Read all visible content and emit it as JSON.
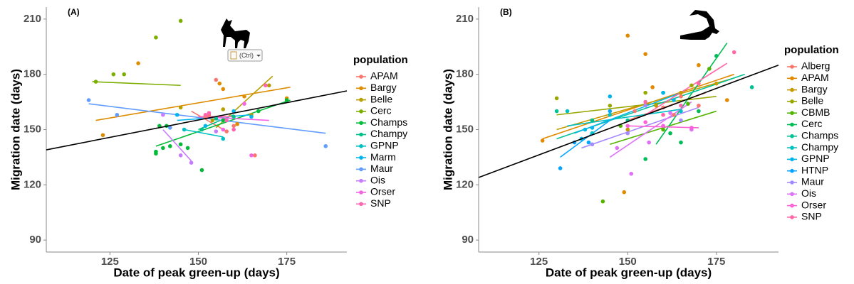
{
  "chart_data": [
    {
      "type": "scatter",
      "label": "(A)",
      "xlabel": "Date of peak green-up (days)",
      "ylabel": "Migration date (days)",
      "legend_title": "population",
      "xlim": [
        107,
        192
      ],
      "ylim": [
        83.5,
        216.5
      ],
      "xticks": [
        125,
        150,
        175
      ],
      "yticks": [
        90,
        120,
        150,
        180,
        210
      ],
      "paste_button_label": "(Ctrl)",
      "overall_fit": {
        "color": "#000000",
        "x": [
          107,
          192
        ],
        "values": [
          139,
          171
        ]
      },
      "series": [
        {
          "name": "APAM",
          "color": "#F8766D",
          "x": [
            155,
            153,
            152,
            166,
            158,
            160
          ],
          "values": [
            177,
            158,
            157,
            136,
            149,
            152
          ],
          "fit_x": [
            148,
            158
          ],
          "fit_y": [
            160,
            149
          ]
        },
        {
          "name": "Bargy",
          "color": "#DE8C00",
          "x": [
            123,
            133,
            157,
            156,
            163,
            175,
            161
          ],
          "values": [
            147,
            186,
            172,
            175,
            168,
            167,
            153
          ],
          "fit_x": [
            121,
            176
          ],
          "fit_y": [
            155,
            173
          ]
        },
        {
          "name": "Belle",
          "color": "#B79F00",
          "x": [
            145,
            157,
            154,
            170,
            165
          ],
          "values": [
            162,
            161,
            155,
            174,
            158
          ],
          "fit_x": [
            155,
            171
          ],
          "fit_y": [
            151,
            179
          ]
        },
        {
          "name": "Cerc",
          "color": "#7CAE00",
          "x": [
            121,
            126,
            129,
            138,
            145
          ],
          "values": [
            176,
            180,
            180,
            200,
            209
          ],
          "fit_x": [
            120,
            145
          ],
          "fit_y": [
            176,
            174
          ]
        },
        {
          "name": "Champs",
          "color": "#00BA38",
          "x": [
            138,
            138,
            140,
            142,
            145,
            147,
            139,
            141,
            151,
            157,
            167,
            175
          ],
          "values": [
            137,
            138,
            140,
            141,
            142,
            140,
            152,
            152,
            128,
            155,
            160,
            166
          ],
          "fit_x": [
            138,
            176
          ],
          "fit_y": [
            141,
            166
          ]
        },
        {
          "name": "Champy",
          "color": "#00C08B",
          "x": [
            151,
            155,
            160
          ],
          "values": [
            150,
            156,
            157
          ],
          "fit_x": [
            150,
            160
          ],
          "fit_y": [
            150,
            158
          ]
        },
        {
          "name": "GPNP",
          "color": "#00BFC4",
          "x": [
            157,
            146
          ],
          "values": [
            145,
            150
          ],
          "fit_x": [
            146,
            157
          ],
          "fit_y": [
            150,
            146
          ]
        },
        {
          "name": "Marm",
          "color": "#00B4F0",
          "x": [
            144,
            165,
            160,
            152
          ],
          "values": [
            158,
            157,
            160,
            152
          ],
          "fit_x": [
            144,
            165
          ],
          "fit_y": [
            155,
            158
          ]
        },
        {
          "name": "Maur",
          "color": "#619CFF",
          "x": [
            119,
            127,
            186,
            142
          ],
          "values": [
            166,
            158,
            141,
            151
          ],
          "fit_x": [
            119,
            186
          ],
          "fit_y": [
            164,
            148
          ]
        },
        {
          "name": "Ois",
          "color": "#C77CFF",
          "x": [
            145,
            148,
            140,
            155
          ],
          "values": [
            136,
            132,
            158,
            149
          ],
          "fit_x": [
            140,
            148
          ],
          "fit_y": [
            150,
            133
          ]
        },
        {
          "name": "Orser",
          "color": "#F564E3",
          "x": [
            163,
            165,
            157
          ],
          "values": [
            164,
            136,
            150
          ],
          "fit_x": [
            150,
            170
          ],
          "fit_y": [
            157,
            155
          ]
        },
        {
          "name": "SNP",
          "color": "#FF64B0",
          "x": [
            153,
            152,
            158,
            160,
            169
          ],
          "values": [
            159,
            158,
            155,
            150,
            174
          ],
          "fit_x": [
            150,
            160
          ],
          "fit_y": [
            157,
            157
          ]
        }
      ]
    },
    {
      "type": "scatter",
      "label": "(B)",
      "xlabel": "Date of peak green-up (days)",
      "ylabel": "Migration date (days)",
      "legend_title": "population",
      "xlim": [
        108,
        192.5
      ],
      "ylim": [
        83.5,
        216.5
      ],
      "xticks": [
        125,
        150,
        175
      ],
      "yticks": [
        90,
        120,
        150,
        180,
        210
      ],
      "overall_fit": {
        "color": "#000000",
        "x": [
          108,
          192.5
        ],
        "values": [
          124,
          185
        ]
      },
      "series": [
        {
          "name": "Alberg",
          "color": "#F8766D",
          "x": [
            152,
            160,
            165,
            170,
            163
          ],
          "values": [
            160,
            162,
            168,
            163,
            158
          ],
          "fit_x": [
            150,
            172
          ],
          "fit_y": [
            155,
            170
          ]
        },
        {
          "name": "APAM",
          "color": "#E38900",
          "x": [
            126,
            150,
            155,
            149,
            157,
            170,
            178
          ],
          "values": [
            144,
            201,
            191,
            116,
            173,
            185,
            166
          ],
          "fit_x": [
            126,
            180
          ],
          "fit_y": [
            145,
            180
          ]
        },
        {
          "name": "Bargy",
          "color": "#C49A00",
          "x": [
            140,
            158,
            165,
            175,
            150
          ],
          "values": [
            155,
            163,
            170,
            175,
            150
          ],
          "fit_x": [
            130,
            180
          ],
          "fit_y": [
            150,
            178
          ]
        },
        {
          "name": "Belle",
          "color": "#99A800",
          "x": [
            130,
            145,
            155,
            168
          ],
          "values": [
            167,
            163,
            170,
            174
          ],
          "fit_x": [
            130,
            175
          ],
          "fit_y": [
            158,
            168
          ]
        },
        {
          "name": "CBMB",
          "color": "#53B400",
          "x": [
            143,
            160,
            167,
            173,
            148
          ],
          "values": [
            111,
            150,
            164,
            183,
            152
          ],
          "fit_x": [
            145,
            175
          ],
          "fit_y": [
            142,
            160
          ]
        },
        {
          "name": "Cerc",
          "color": "#00BC56",
          "x": [
            155,
            162,
            170,
            175,
            165
          ],
          "values": [
            134,
            148,
            160,
            190,
            143
          ],
          "fit_x": [
            158,
            178
          ],
          "fit_y": [
            142,
            197
          ]
        },
        {
          "name": "Champs",
          "color": "#00C094",
          "x": [
            130,
            140,
            160,
            185,
            150
          ],
          "values": [
            160,
            155,
            170,
            173,
            155
          ],
          "fit_x": [
            130,
            183
          ],
          "fit_y": [
            145,
            180
          ]
        },
        {
          "name": "Champy",
          "color": "#00BFC4",
          "x": [
            133,
            140,
            145,
            165
          ],
          "values": [
            160,
            148,
            158,
            160
          ],
          "fit_x": [
            133,
            165
          ],
          "fit_y": [
            152,
            161
          ]
        },
        {
          "name": "GPNP",
          "color": "#00B6EB",
          "x": [
            137,
            138,
            140,
            160,
            145,
            163
          ],
          "values": [
            145,
            150,
            151,
            170,
            168,
            166
          ],
          "fit_x": [
            135,
            165
          ],
          "fit_y": [
            148,
            170
          ]
        },
        {
          "name": "HTNP",
          "color": "#06A4FF",
          "x": [
            131,
            135,
            139,
            145
          ],
          "values": [
            129,
            143,
            143,
            160
          ],
          "fit_x": [
            131,
            145
          ],
          "fit_y": [
            135,
            155
          ]
        },
        {
          "name": "Maur",
          "color": "#A58AFF",
          "x": [
            140,
            150,
            160,
            165,
            155
          ],
          "values": [
            142,
            148,
            152,
            155,
            163
          ],
          "fit_x": [
            137,
            170
          ],
          "fit_y": [
            140,
            162
          ]
        },
        {
          "name": "Ois",
          "color": "#DF70F8",
          "x": [
            151,
            156,
            162,
            168,
            147
          ],
          "values": [
            126,
            143,
            159,
            150,
            140
          ],
          "fit_x": [
            145,
            168
          ],
          "fit_y": [
            135,
            165
          ]
        },
        {
          "name": "Orser",
          "color": "#FB61D7",
          "x": [
            150,
            160,
            168,
            155
          ],
          "values": [
            152,
            152,
            151,
            154
          ],
          "fit_x": [
            150,
            170
          ],
          "fit_y": [
            152,
            151
          ]
        },
        {
          "name": "SNP",
          "color": "#FF66A8",
          "x": [
            155,
            170,
            180,
            160,
            165
          ],
          "values": [
            165,
            175,
            192,
            158,
            163
          ],
          "fit_x": [
            155,
            178
          ],
          "fit_y": [
            158,
            186
          ]
        }
      ]
    }
  ]
}
